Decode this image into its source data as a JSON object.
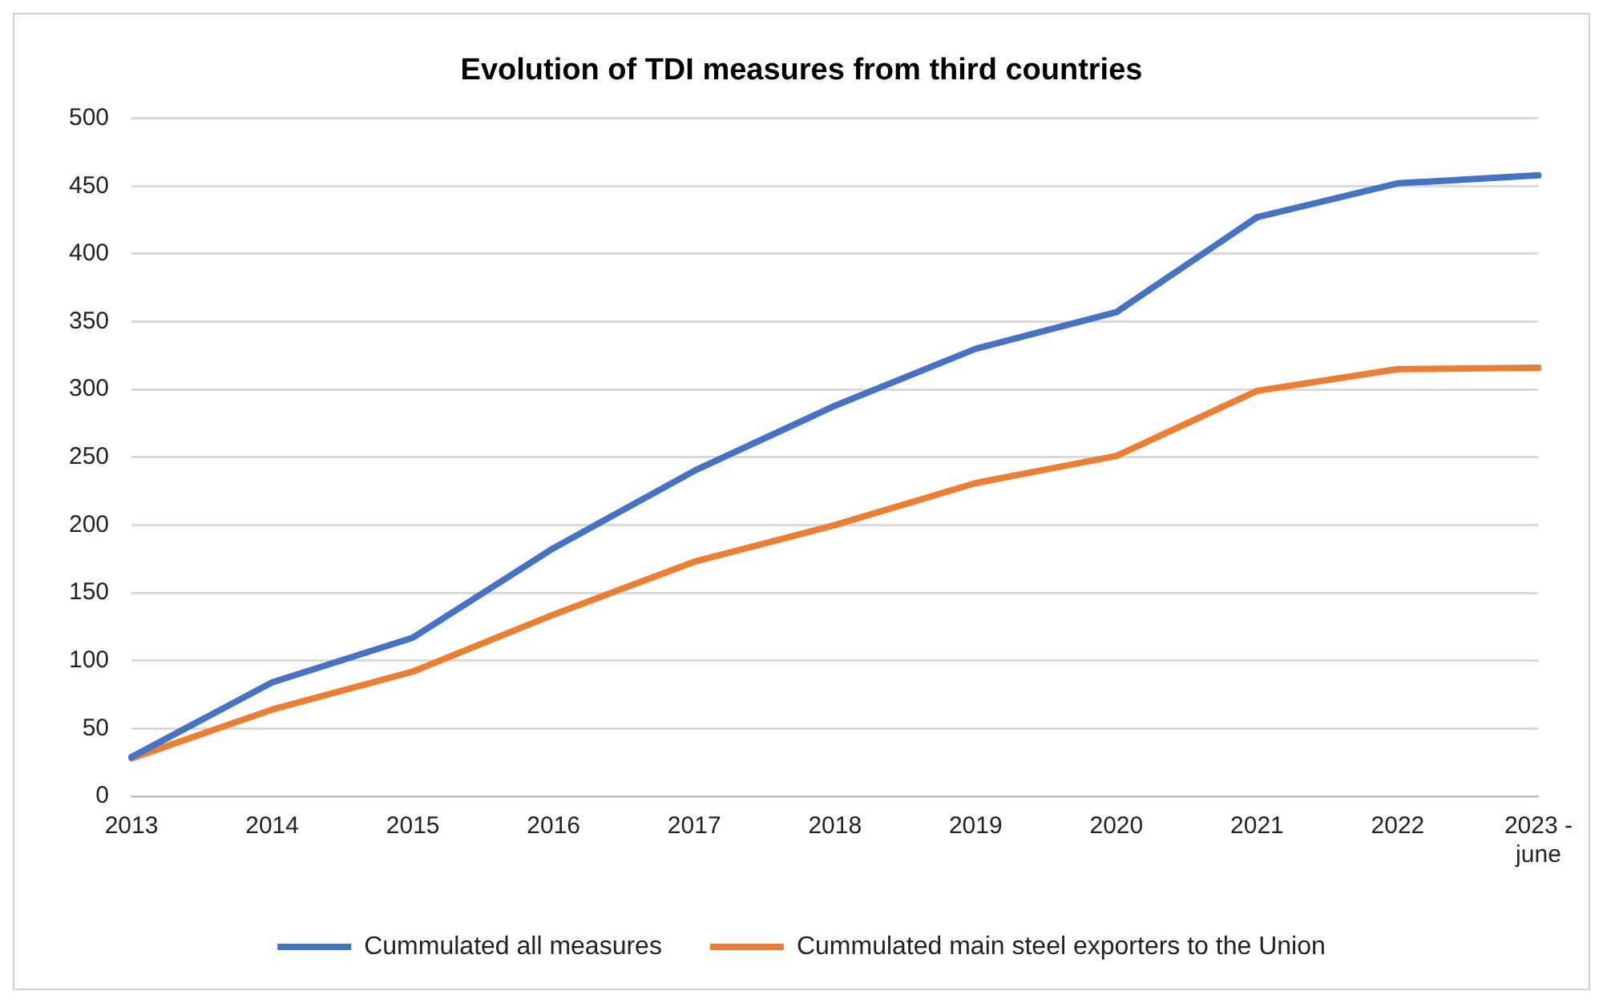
{
  "chart_data": {
    "type": "line",
    "title": "Evolution of TDI measures from third countries",
    "categories": [
      "2013",
      "2014",
      "2015",
      "2016",
      "2017",
      "2018",
      "2019",
      "2020",
      "2021",
      "2022",
      "2023 - june"
    ],
    "series": [
      {
        "name": "Cummulated all measures",
        "color": "#4472c4",
        "values": [
          29,
          84,
          117,
          183,
          240,
          288,
          330,
          357,
          427,
          452,
          458
        ]
      },
      {
        "name": "Cummulated main steel exporters to the Union",
        "color": "#ed7d31",
        "values": [
          28,
          64,
          92,
          134,
          173,
          200,
          231,
          251,
          299,
          315,
          316
        ]
      }
    ],
    "ylim": [
      0,
      500
    ],
    "yticks": [
      0,
      50,
      100,
      150,
      200,
      250,
      300,
      350,
      400,
      450,
      500
    ],
    "grid": "y",
    "legend": "bottom",
    "marker": "none",
    "line_style": "solid"
  }
}
